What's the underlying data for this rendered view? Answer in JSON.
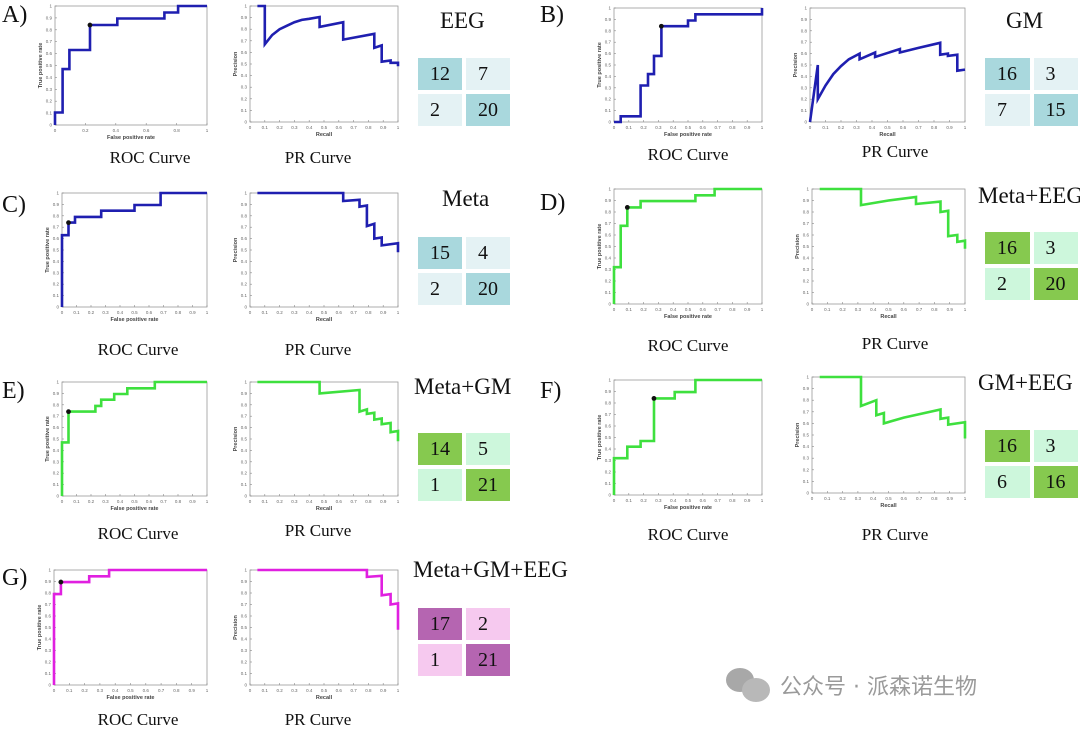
{
  "figure": {
    "watermark_text": "公众号 · 派森诺生物",
    "colors": {
      "blue_curve": "#1f1fb0",
      "green_curve": "#3ee03e",
      "magenta_curve": "#e020e0",
      "teal_dark": "#a9d8dd",
      "teal_light": "#e4f2f4",
      "green_dark": "#86c94f",
      "green_light": "#cdf7dc",
      "purple_dark": "#b565b1",
      "purple_light": "#f6c9ef"
    }
  },
  "chart_data": [
    {
      "panel": "A)",
      "model": "EEG",
      "color": "#1f1fb0",
      "cm_scheme": "teal",
      "type": "line",
      "roc": {
        "title": "ROC Curve",
        "xlabel": "False positive rate",
        "ylabel": "True positive rate",
        "xlim": [
          0,
          1
        ],
        "ylim": [
          0,
          1
        ],
        "xticks": [
          0,
          0.2,
          0.4,
          0.6,
          0.8,
          1
        ],
        "yticks": [
          0,
          0.1,
          0.2,
          0.3,
          0.4,
          0.5,
          0.6,
          0.7,
          0.8,
          0.9,
          1
        ],
        "x": [
          0,
          0,
          0.05,
          0.05,
          0.095,
          0.095,
          0.23,
          0.23,
          0.41,
          0.41,
          0.72,
          0.72,
          0.81,
          0.81,
          1
        ],
        "y": [
          0,
          0.105,
          0.105,
          0.47,
          0.47,
          0.63,
          0.63,
          0.84,
          0.84,
          0.895,
          0.895,
          0.945,
          0.945,
          1,
          1
        ],
        "optimal_point": [
          0.23,
          0.84
        ]
      },
      "pr": {
        "title": "PR Curve",
        "xlabel": "Recall",
        "ylabel": "Precision",
        "xlim": [
          0,
          1
        ],
        "ylim": [
          0,
          1
        ],
        "xticks": [
          0,
          0.1,
          0.2,
          0.3,
          0.4,
          0.5,
          0.6,
          0.7,
          0.8,
          0.9,
          1
        ],
        "yticks": [
          0,
          0.1,
          0.2,
          0.3,
          0.4,
          0.5,
          0.6,
          0.7,
          0.8,
          0.9,
          1
        ],
        "x": [
          0.05,
          0.1,
          0.1,
          0.15,
          0.2,
          0.25,
          0.3,
          0.35,
          0.4,
          0.47,
          0.47,
          0.63,
          0.63,
          0.84,
          0.84,
          0.89,
          0.89,
          0.95,
          0.95,
          1,
          1
        ],
        "y": [
          1,
          1,
          0.67,
          0.75,
          0.8,
          0.83,
          0.86,
          0.88,
          0.89,
          0.905,
          0.82,
          0.86,
          0.71,
          0.76,
          0.64,
          0.66,
          0.52,
          0.53,
          0.51,
          0.51,
          0.48
        ]
      },
      "confusion_matrix": [
        [
          12,
          7
        ],
        [
          2,
          20
        ]
      ]
    },
    {
      "panel": "B)",
      "model": "GM",
      "color": "#1f1fb0",
      "cm_scheme": "teal",
      "type": "line",
      "roc": {
        "title": "ROC Curve",
        "xlabel": "False positive rate",
        "ylabel": "True positive rate",
        "xlim": [
          0,
          1
        ],
        "ylim": [
          0,
          1
        ],
        "xticks": [
          0,
          0.1,
          0.2,
          0.3,
          0.4,
          0.5,
          0.6,
          0.7,
          0.8,
          0.9,
          1
        ],
        "yticks": [
          0,
          0.1,
          0.2,
          0.3,
          0.4,
          0.5,
          0.6,
          0.7,
          0.8,
          0.9,
          1
        ],
        "x": [
          0,
          0.045,
          0.045,
          0.18,
          0.18,
          0.23,
          0.23,
          0.27,
          0.27,
          0.32,
          0.32,
          0.5,
          0.5,
          0.55,
          0.55,
          1,
          1
        ],
        "y": [
          0,
          0,
          0.05,
          0.05,
          0.32,
          0.32,
          0.42,
          0.42,
          0.58,
          0.58,
          0.84,
          0.84,
          0.89,
          0.89,
          0.945,
          0.945,
          1
        ],
        "optimal_point": [
          0.32,
          0.84
        ]
      },
      "pr": {
        "title": "PR Curve",
        "xlabel": "Recall",
        "ylabel": "Precision",
        "xlim": [
          0,
          1
        ],
        "ylim": [
          0,
          1
        ],
        "xticks": [
          0,
          0.1,
          0.2,
          0.3,
          0.4,
          0.5,
          0.6,
          0.7,
          0.8,
          0.9,
          1
        ],
        "yticks": [
          0,
          0.1,
          0.2,
          0.3,
          0.4,
          0.5,
          0.6,
          0.7,
          0.8,
          0.9,
          1
        ],
        "x": [
          0,
          0.05,
          0.05,
          0.1,
          0.15,
          0.2,
          0.25,
          0.32,
          0.32,
          0.42,
          0.42,
          0.58,
          0.58,
          0.7,
          0.84,
          0.84,
          0.89,
          0.89,
          0.95,
          0.95,
          1
        ],
        "y": [
          0,
          0.5,
          0.2,
          0.32,
          0.42,
          0.49,
          0.55,
          0.6,
          0.55,
          0.61,
          0.57,
          0.64,
          0.61,
          0.65,
          0.695,
          0.59,
          0.6,
          0.58,
          0.59,
          0.45,
          0.46
        ]
      },
      "confusion_matrix": [
        [
          16,
          3
        ],
        [
          7,
          15
        ]
      ]
    },
    {
      "panel": "C)",
      "model": "Meta",
      "color": "#1f1fb0",
      "cm_scheme": "teal",
      "type": "line",
      "roc": {
        "title": "ROC Curve",
        "xlabel": "False positive rate",
        "ylabel": "True positive rate",
        "xlim": [
          0,
          1
        ],
        "ylim": [
          0,
          1
        ],
        "xticks": [
          0,
          0.1,
          0.2,
          0.3,
          0.4,
          0.5,
          0.6,
          0.7,
          0.8,
          0.9,
          1
        ],
        "yticks": [
          0,
          0.1,
          0.2,
          0.3,
          0.4,
          0.5,
          0.6,
          0.7,
          0.8,
          0.9,
          1
        ],
        "x": [
          0,
          0,
          0.045,
          0.045,
          0.09,
          0.09,
          0.27,
          0.27,
          0.5,
          0.5,
          0.68,
          0.68,
          1
        ],
        "y": [
          0,
          0.63,
          0.63,
          0.74,
          0.74,
          0.79,
          0.79,
          0.845,
          0.845,
          0.895,
          0.895,
          1,
          1
        ],
        "optimal_point": [
          0.045,
          0.74
        ]
      },
      "pr": {
        "title": "PR Curve",
        "xlabel": "Recall",
        "ylabel": "Precision",
        "xlim": [
          0,
          1
        ],
        "ylim": [
          0,
          1
        ],
        "xticks": [
          0,
          0.1,
          0.2,
          0.3,
          0.4,
          0.5,
          0.6,
          0.7,
          0.8,
          0.9,
          1
        ],
        "yticks": [
          0,
          0.1,
          0.2,
          0.3,
          0.4,
          0.5,
          0.6,
          0.7,
          0.8,
          0.9,
          1
        ],
        "x": [
          0.05,
          0.63,
          0.63,
          0.74,
          0.74,
          0.79,
          0.79,
          0.84,
          0.84,
          0.89,
          0.89,
          1,
          1
        ],
        "y": [
          1,
          1,
          0.93,
          0.94,
          0.88,
          0.89,
          0.71,
          0.73,
          0.6,
          0.61,
          0.54,
          0.56,
          0.48
        ]
      },
      "confusion_matrix": [
        [
          15,
          4
        ],
        [
          2,
          20
        ]
      ]
    },
    {
      "panel": "D)",
      "model": "Meta+EEG",
      "color": "#3ee03e",
      "cm_scheme": "green",
      "type": "line",
      "roc": {
        "title": "ROC Curve",
        "xlabel": "False positive rate",
        "ylabel": "True positive rate",
        "xlim": [
          0,
          1
        ],
        "ylim": [
          0,
          1
        ],
        "xticks": [
          0,
          0.1,
          0.2,
          0.3,
          0.4,
          0.5,
          0.6,
          0.7,
          0.8,
          0.9,
          1
        ],
        "yticks": [
          0,
          0.1,
          0.2,
          0.3,
          0.4,
          0.5,
          0.6,
          0.7,
          0.8,
          0.9,
          1
        ],
        "x": [
          0,
          0,
          0.045,
          0.045,
          0.09,
          0.09,
          0.18,
          0.18,
          0.55,
          0.55,
          0.68,
          0.68,
          1
        ],
        "y": [
          0,
          0.32,
          0.32,
          0.68,
          0.68,
          0.84,
          0.84,
          0.895,
          0.895,
          0.945,
          0.945,
          1,
          1
        ],
        "optimal_point": [
          0.09,
          0.84
        ]
      },
      "pr": {
        "title": "PR Curve",
        "xlabel": "Recall",
        "ylabel": "Precision",
        "xlim": [
          0,
          1
        ],
        "ylim": [
          0,
          1
        ],
        "xticks": [
          0,
          0.1,
          0.2,
          0.3,
          0.4,
          0.5,
          0.6,
          0.7,
          0.8,
          0.9,
          1
        ],
        "yticks": [
          0,
          0.1,
          0.2,
          0.3,
          0.4,
          0.5,
          0.6,
          0.7,
          0.8,
          0.9,
          1
        ],
        "x": [
          0.05,
          0.32,
          0.32,
          0.5,
          0.68,
          0.68,
          0.84,
          0.84,
          0.89,
          0.89,
          0.95,
          0.95,
          1,
          1
        ],
        "y": [
          1,
          1,
          0.86,
          0.9,
          0.93,
          0.87,
          0.89,
          0.8,
          0.81,
          0.59,
          0.6,
          0.54,
          0.55,
          0.48
        ]
      },
      "confusion_matrix": [
        [
          16,
          3
        ],
        [
          2,
          20
        ]
      ]
    },
    {
      "panel": "E)",
      "model": "Meta+GM",
      "color": "#3ee03e",
      "cm_scheme": "green",
      "type": "line",
      "roc": {
        "title": "ROC Curve",
        "xlabel": "False positive rate",
        "ylabel": "True positive rate",
        "xlim": [
          0,
          1
        ],
        "ylim": [
          0,
          1
        ],
        "xticks": [
          0,
          0.1,
          0.2,
          0.3,
          0.4,
          0.5,
          0.6,
          0.7,
          0.8,
          0.9,
          1
        ],
        "yticks": [
          0,
          0.1,
          0.2,
          0.3,
          0.4,
          0.5,
          0.6,
          0.7,
          0.8,
          0.9,
          1
        ],
        "x": [
          0,
          0,
          0.045,
          0.045,
          0.23,
          0.23,
          0.27,
          0.27,
          0.36,
          0.36,
          0.45,
          0.45,
          0.64,
          0.64,
          1
        ],
        "y": [
          0,
          0.47,
          0.47,
          0.74,
          0.74,
          0.79,
          0.79,
          0.845,
          0.845,
          0.895,
          0.895,
          0.945,
          0.945,
          1,
          1
        ],
        "optimal_point": [
          0.045,
          0.74
        ]
      },
      "pr": {
        "title": "PR Curve",
        "xlabel": "Recall",
        "ylabel": "Precision",
        "xlim": [
          0,
          1
        ],
        "ylim": [
          0,
          1
        ],
        "xticks": [
          0,
          0.1,
          0.2,
          0.3,
          0.4,
          0.5,
          0.6,
          0.7,
          0.8,
          0.9,
          1
        ],
        "yticks": [
          0,
          0.1,
          0.2,
          0.3,
          0.4,
          0.5,
          0.6,
          0.7,
          0.8,
          0.9,
          1
        ],
        "x": [
          0.05,
          0.47,
          0.47,
          0.74,
          0.74,
          0.79,
          0.79,
          0.84,
          0.84,
          0.89,
          0.89,
          0.95,
          0.95,
          1,
          1
        ],
        "y": [
          1,
          1,
          0.9,
          0.93,
          0.74,
          0.76,
          0.72,
          0.73,
          0.67,
          0.68,
          0.63,
          0.64,
          0.56,
          0.57,
          0.48
        ]
      },
      "confusion_matrix": [
        [
          14,
          5
        ],
        [
          1,
          21
        ]
      ]
    },
    {
      "panel": "F)",
      "model": "GM+EEG",
      "color": "#3ee03e",
      "cm_scheme": "green",
      "type": "line",
      "roc": {
        "title": "ROC Curve",
        "xlabel": "False positive rate",
        "ylabel": "True positive rate",
        "xlim": [
          0,
          1
        ],
        "ylim": [
          0,
          1
        ],
        "xticks": [
          0,
          0.1,
          0.2,
          0.3,
          0.4,
          0.5,
          0.6,
          0.7,
          0.8,
          0.9,
          1
        ],
        "yticks": [
          0,
          0.1,
          0.2,
          0.3,
          0.4,
          0.5,
          0.6,
          0.7,
          0.8,
          0.9,
          1
        ],
        "x": [
          0,
          0,
          0.09,
          0.09,
          0.18,
          0.18,
          0.27,
          0.27,
          0.41,
          0.41,
          0.55,
          0.55,
          1
        ],
        "y": [
          0,
          0.32,
          0.32,
          0.42,
          0.42,
          0.47,
          0.47,
          0.84,
          0.84,
          0.895,
          0.895,
          1,
          1
        ],
        "optimal_point": [
          0.27,
          0.84
        ]
      },
      "pr": {
        "title": "PR Curve",
        "xlabel": "Recall",
        "ylabel": "Precision",
        "xlim": [
          0,
          1
        ],
        "ylim": [
          0,
          1
        ],
        "xticks": [
          0,
          0.1,
          0.2,
          0.3,
          0.4,
          0.5,
          0.6,
          0.7,
          0.8,
          0.9,
          1
        ],
        "yticks": [
          0,
          0.1,
          0.2,
          0.3,
          0.4,
          0.5,
          0.6,
          0.7,
          0.8,
          0.9,
          1
        ],
        "x": [
          0.05,
          0.32,
          0.32,
          0.42,
          0.42,
          0.47,
          0.47,
          0.6,
          0.84,
          0.84,
          0.89,
          0.89,
          1,
          1
        ],
        "y": [
          1,
          1,
          0.75,
          0.8,
          0.67,
          0.69,
          0.6,
          0.65,
          0.72,
          0.64,
          0.65,
          0.59,
          0.61,
          0.47
        ]
      },
      "confusion_matrix": [
        [
          16,
          3
        ],
        [
          6,
          16
        ]
      ]
    },
    {
      "panel": "G)",
      "model": "Meta+GM+EEG",
      "color": "#e020e0",
      "cm_scheme": "purple",
      "type": "line",
      "roc": {
        "title": "ROC Curve",
        "xlabel": "False positive rate",
        "ylabel": "True positive rate",
        "xlim": [
          0,
          1
        ],
        "ylim": [
          0,
          1
        ],
        "xticks": [
          0,
          0.1,
          0.2,
          0.3,
          0.4,
          0.5,
          0.6,
          0.7,
          0.8,
          0.9,
          1
        ],
        "yticks": [
          0,
          0.1,
          0.2,
          0.3,
          0.4,
          0.5,
          0.6,
          0.7,
          0.8,
          0.9,
          1
        ],
        "x": [
          0,
          0,
          0.045,
          0.045,
          0.23,
          0.23,
          0.36,
          0.36,
          1
        ],
        "y": [
          0,
          0.79,
          0.79,
          0.895,
          0.895,
          0.945,
          0.945,
          1,
          1
        ],
        "optimal_point": [
          0.045,
          0.895
        ]
      },
      "pr": {
        "title": "PR Curve",
        "xlabel": "Recall",
        "ylabel": "Precision",
        "xlim": [
          0,
          1
        ],
        "ylim": [
          0,
          1
        ],
        "xticks": [
          0,
          0.1,
          0.2,
          0.3,
          0.4,
          0.5,
          0.6,
          0.7,
          0.8,
          0.9,
          1
        ],
        "yticks": [
          0,
          0.1,
          0.2,
          0.3,
          0.4,
          0.5,
          0.6,
          0.7,
          0.8,
          0.9,
          1
        ],
        "x": [
          0.05,
          0.79,
          0.79,
          0.89,
          0.89,
          0.95,
          0.95,
          1,
          1
        ],
        "y": [
          1,
          1,
          0.94,
          0.95,
          0.78,
          0.79,
          0.7,
          0.71,
          0.48
        ]
      },
      "confusion_matrix": [
        [
          17,
          2
        ],
        [
          1,
          21
        ]
      ]
    }
  ]
}
